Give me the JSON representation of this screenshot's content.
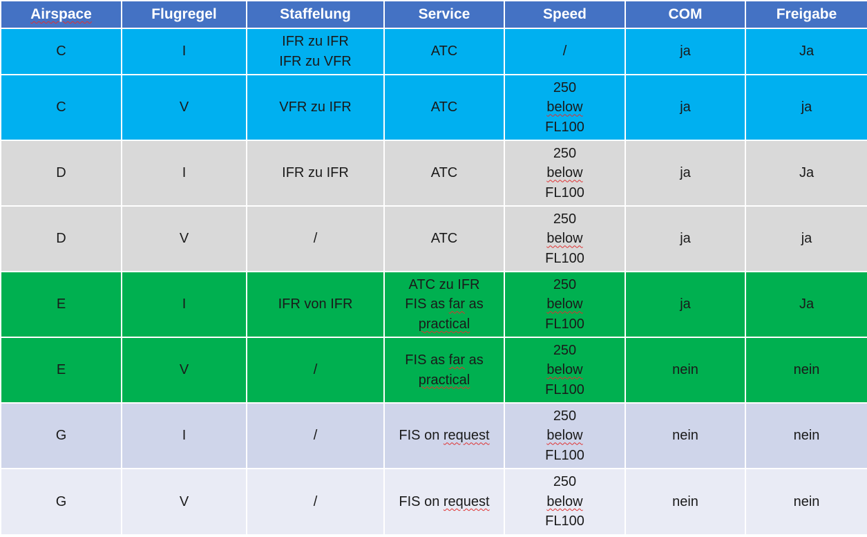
{
  "table": {
    "headers": [
      "Airspace",
      "Flugregel",
      "Staffelung",
      "Service",
      "Speed",
      "COM",
      "Freigabe"
    ],
    "rows": [
      {
        "bg": "#00b0f0",
        "cells": [
          {
            "lines": [
              "C"
            ]
          },
          {
            "lines": [
              "I"
            ]
          },
          {
            "lines": [
              "IFR zu IFR",
              "IFR zu VFR"
            ]
          },
          {
            "lines": [
              "ATC"
            ]
          },
          {
            "lines": [
              "/"
            ]
          },
          {
            "lines": [
              "ja"
            ]
          },
          {
            "lines": [
              "Ja"
            ]
          }
        ]
      },
      {
        "bg": "#00b0f0",
        "cells": [
          {
            "lines": [
              "C"
            ]
          },
          {
            "lines": [
              "V"
            ]
          },
          {
            "lines": [
              "VFR zu IFR"
            ]
          },
          {
            "lines": [
              "ATC"
            ]
          },
          {
            "lines": [
              "250",
              "below",
              "FL100"
            ]
          },
          {
            "lines": [
              "ja"
            ]
          },
          {
            "lines": [
              "ja"
            ]
          }
        ]
      },
      {
        "bg": "#d9d9d9",
        "cells": [
          {
            "lines": [
              "D"
            ]
          },
          {
            "lines": [
              "I"
            ]
          },
          {
            "lines": [
              "IFR zu IFR"
            ]
          },
          {
            "lines": [
              "ATC"
            ]
          },
          {
            "lines": [
              "250",
              "below",
              "FL100"
            ]
          },
          {
            "lines": [
              "ja"
            ]
          },
          {
            "lines": [
              "Ja"
            ]
          }
        ]
      },
      {
        "bg": "#d9d9d9",
        "cells": [
          {
            "lines": [
              "D"
            ]
          },
          {
            "lines": [
              "V"
            ]
          },
          {
            "lines": [
              "/"
            ]
          },
          {
            "lines": [
              "ATC"
            ]
          },
          {
            "lines": [
              "250",
              "below",
              "FL100"
            ]
          },
          {
            "lines": [
              "ja"
            ]
          },
          {
            "lines": [
              "ja"
            ]
          }
        ]
      },
      {
        "bg": "#00b050",
        "cells": [
          {
            "lines": [
              "E"
            ]
          },
          {
            "lines": [
              "I"
            ]
          },
          {
            "lines": [
              "IFR von IFR"
            ]
          },
          {
            "lines": [
              "ATC zu IFR",
              "FIS as far as",
              "practical"
            ]
          },
          {
            "lines": [
              "250",
              "below",
              "FL100"
            ]
          },
          {
            "lines": [
              "ja"
            ]
          },
          {
            "lines": [
              "Ja"
            ]
          }
        ]
      },
      {
        "bg": "#00b050",
        "cells": [
          {
            "lines": [
              "E"
            ]
          },
          {
            "lines": [
              "V"
            ]
          },
          {
            "lines": [
              "/"
            ]
          },
          {
            "lines": [
              "FIS as far as",
              "practical"
            ]
          },
          {
            "lines": [
              "250",
              "below",
              "FL100"
            ]
          },
          {
            "lines": [
              "nein"
            ]
          },
          {
            "lines": [
              "nein"
            ]
          }
        ]
      },
      {
        "bg": "#cfd5ea",
        "cells": [
          {
            "lines": [
              "G"
            ]
          },
          {
            "lines": [
              "I"
            ]
          },
          {
            "lines": [
              "/"
            ]
          },
          {
            "lines": [
              "FIS on request"
            ]
          },
          {
            "lines": [
              "250",
              "below",
              "FL100"
            ]
          },
          {
            "lines": [
              "nein"
            ]
          },
          {
            "lines": [
              "nein"
            ]
          }
        ]
      },
      {
        "bg": "#e9ebf5",
        "cells": [
          {
            "lines": [
              "G"
            ]
          },
          {
            "lines": [
              "V"
            ]
          },
          {
            "lines": [
              "/"
            ]
          },
          {
            "lines": [
              "FIS on request"
            ]
          },
          {
            "lines": [
              "250",
              "below",
              "FL100"
            ]
          },
          {
            "lines": [
              "nein"
            ]
          },
          {
            "lines": [
              "nein"
            ]
          }
        ]
      }
    ]
  }
}
